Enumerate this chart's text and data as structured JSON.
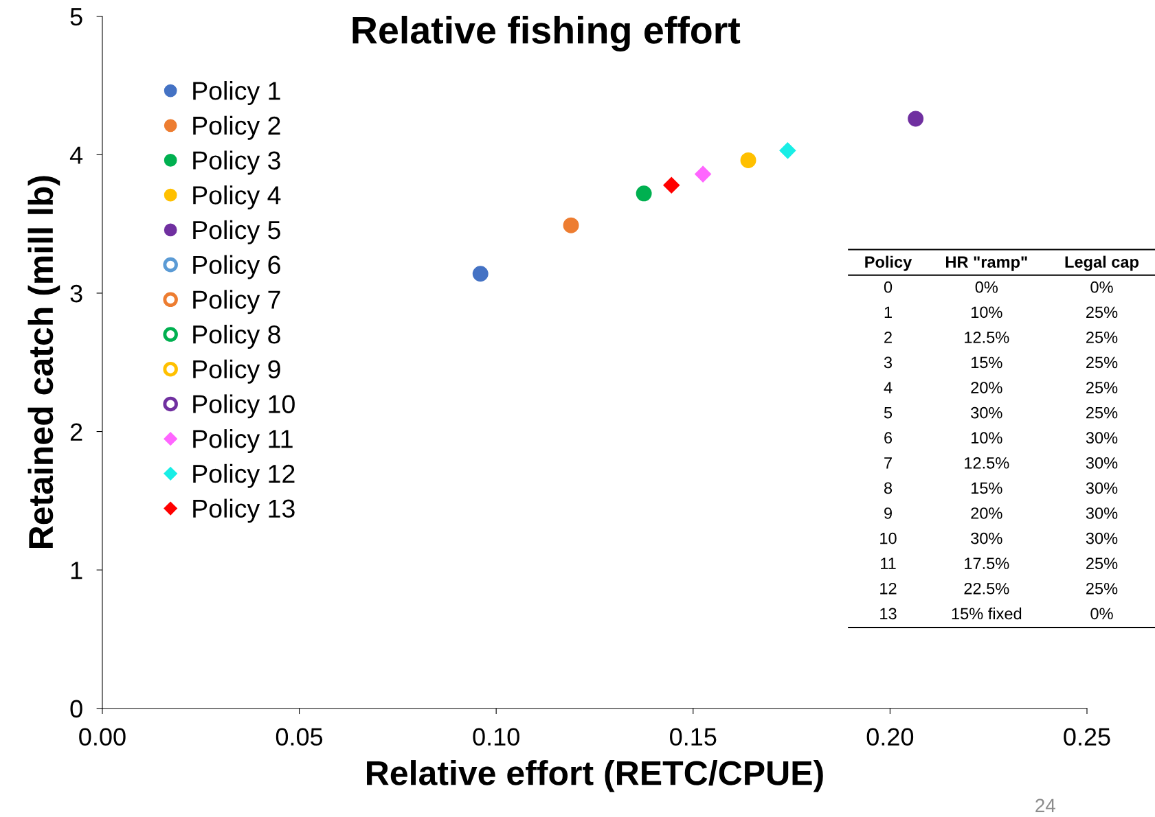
{
  "chart_data": {
    "type": "scatter",
    "title": "Relative fishing effort",
    "xlabel": "Relative effort (RETC/CPUE)",
    "ylabel": "Retained catch (mill lb)",
    "xlim": [
      0,
      0.25
    ],
    "xticks": [
      {
        "value": 0,
        "label": "0.00"
      },
      {
        "value": 0.05,
        "label": "0.05"
      },
      {
        "value": 0.1,
        "label": "0.10"
      },
      {
        "value": 0.15,
        "label": "0.15"
      },
      {
        "value": 0.2,
        "label": "0.20"
      },
      {
        "value": 0.25,
        "label": "0.25"
      }
    ],
    "ylim": [
      0,
      5
    ],
    "yticks": [
      0,
      1,
      2,
      3,
      4,
      5
    ],
    "grid": false,
    "legend": "top left",
    "series": [
      {
        "name": "Policy 1",
        "color": "#4472c4",
        "marker": "circle",
        "x": [
          0.096
        ],
        "values": [
          3.14
        ]
      },
      {
        "name": "Policy 2",
        "color": "#ed7d31",
        "marker": "circle",
        "x": [
          0.119
        ],
        "values": [
          3.49
        ]
      },
      {
        "name": "Policy 3",
        "color": "#00b050",
        "marker": "circle",
        "x": [
          0.1375
        ],
        "values": [
          3.72
        ]
      },
      {
        "name": "Policy 4",
        "color": "#ffc000",
        "marker": "circle",
        "x": [
          0.164
        ],
        "values": [
          3.96
        ]
      },
      {
        "name": "Policy 5",
        "color": "#7030a0",
        "marker": "circle",
        "x": [
          0.2065
        ],
        "values": [
          4.26
        ]
      },
      {
        "name": "Policy 6",
        "color": "#5b9bd5",
        "marker": "circle",
        "x": [
          null
        ],
        "values": [
          null
        ]
      },
      {
        "name": "Policy 7",
        "color": "#ed7d31",
        "marker": "circle",
        "x": [
          null
        ],
        "values": [
          null
        ]
      },
      {
        "name": "Policy 8",
        "color": "#00b050",
        "marker": "circle",
        "x": [
          null
        ],
        "values": [
          null
        ]
      },
      {
        "name": "Policy 9",
        "color": "#ffc000",
        "marker": "circle",
        "x": [
          null
        ],
        "values": [
          null
        ]
      },
      {
        "name": "Policy 10",
        "color": "#7030a0",
        "marker": "circle",
        "x": [
          null
        ],
        "values": [
          null
        ]
      },
      {
        "name": "Policy 11",
        "color": "#ff66ff",
        "marker": "diamond",
        "x": [
          0.1525
        ],
        "values": [
          3.86
        ]
      },
      {
        "name": "Policy 12",
        "color": "#19eee6",
        "marker": "diamond",
        "x": [
          0.174
        ],
        "values": [
          4.03
        ]
      },
      {
        "name": "Policy 13",
        "color": "#ff0000",
        "marker": "diamond",
        "x": [
          0.1445
        ],
        "values": [
          3.78
        ]
      }
    ],
    "annotations": [
      "Policy",
      "HR \"ramp\"",
      "Legal cap",
      "0",
      "0%",
      "0%",
      "1",
      "10%",
      "25%",
      "2",
      "12.5%",
      "25%",
      "3",
      "15%",
      "25%",
      "4",
      "20%",
      "25%",
      "5",
      "30%",
      "25%",
      "6",
      "10%",
      "30%",
      "7",
      "12.5%",
      "30%",
      "8",
      "15%",
      "30%",
      "9",
      "20%",
      "30%",
      "10",
      "30%",
      "30%",
      "11",
      "17.5%",
      "25%",
      "12",
      "22.5%",
      "25%",
      "13",
      "15% fixed",
      "0%",
      "24"
    ]
  }
}
